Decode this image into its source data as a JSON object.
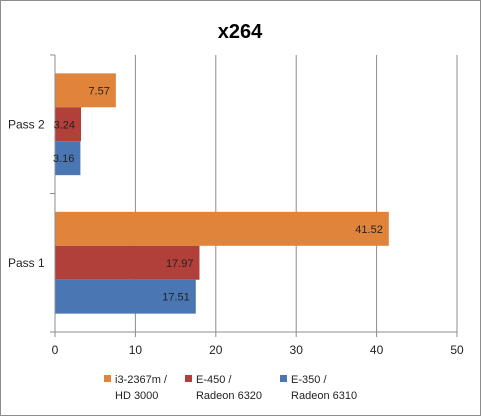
{
  "chart_data": {
    "type": "bar",
    "orientation": "horizontal",
    "title": "x264",
    "categories": [
      "Pass 2",
      "Pass 1"
    ],
    "series": [
      {
        "name": "i3-2367m /\nHD 3000",
        "color": "#e0843c",
        "values": [
          7.57,
          41.52
        ]
      },
      {
        "name": "E-450 /\nRadeon 6320",
        "color": "#b2403a",
        "values": [
          3.24,
          17.97
        ]
      },
      {
        "name": "E-350 /\nRadeon 6310",
        "color": "#4a77b4",
        "values": [
          3.16,
          17.51
        ]
      }
    ],
    "xlim": [
      0,
      50
    ],
    "xticks": [
      0,
      10,
      20,
      30,
      40,
      50
    ],
    "grid": true,
    "legend_position": "bottom"
  }
}
